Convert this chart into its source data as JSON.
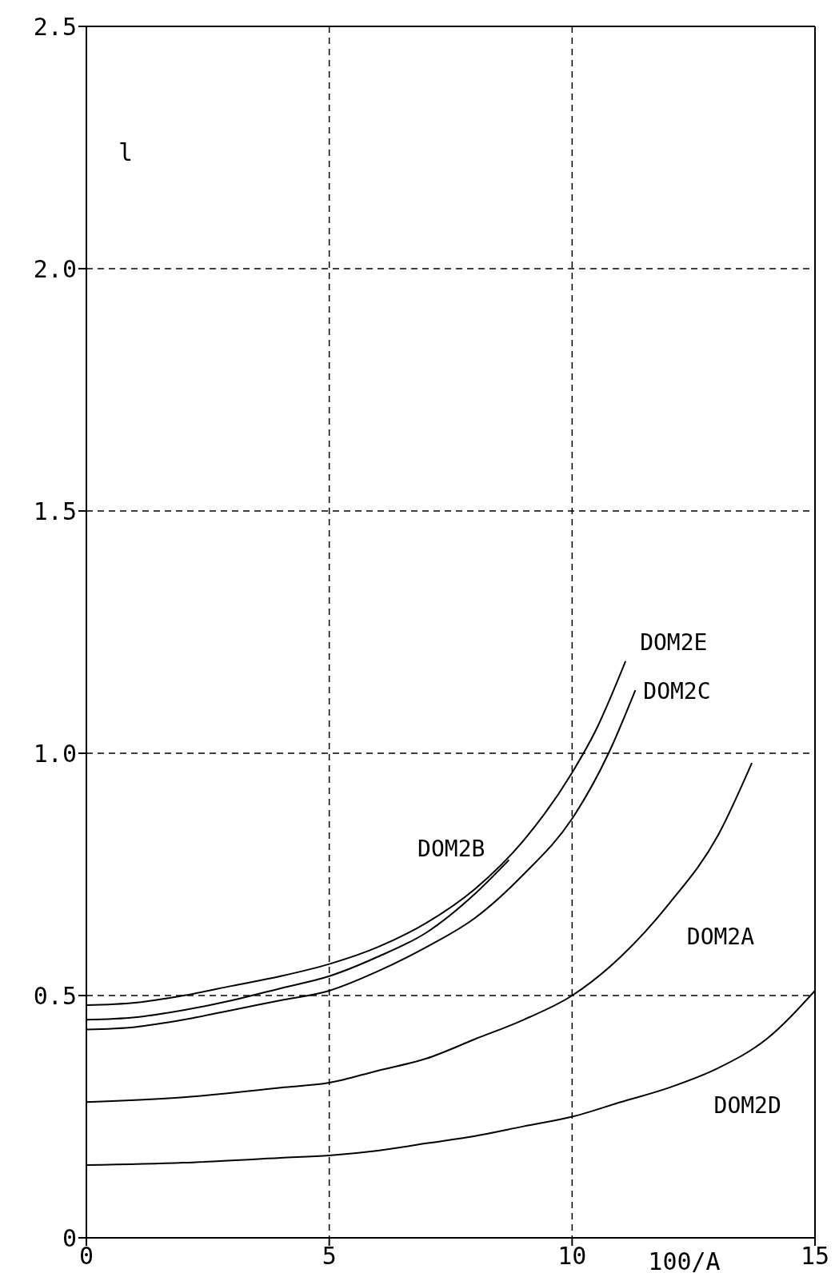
{
  "chart_data": {
    "type": "line",
    "xlabel": "100/A",
    "ylabel": "l",
    "xlim": [
      0,
      15
    ],
    "xticks": [
      0,
      5,
      10,
      15
    ],
    "ylim": [
      0,
      2.5
    ],
    "yticks": [
      0,
      {
        "value": 0.5,
        "label": "0.5"
      },
      {
        "value": 1,
        "label": "1.0"
      },
      {
        "value": 1.5,
        "label": "1.5"
      },
      {
        "value": 2,
        "label": "2.0"
      },
      {
        "value": 2.5,
        "label": "2.5"
      }
    ],
    "grid": true,
    "marker": "none",
    "line_style": "solid",
    "series": [
      {
        "name": "DOM2E",
        "color": "#000000",
        "x": [
          0,
          1,
          2,
          3,
          4,
          5,
          6,
          7,
          8,
          9,
          10,
          10.5,
          11.1
        ],
        "values": [
          0.48,
          0.485,
          0.5,
          0.52,
          0.54,
          0.565,
          0.6,
          0.65,
          0.72,
          0.82,
          0.96,
          1.05,
          1.19
        ]
      },
      {
        "name": "DOM2B",
        "color": "#000000",
        "x": [
          0,
          1,
          2,
          3,
          4,
          5,
          6,
          7,
          8,
          8.7
        ],
        "values": [
          0.45,
          0.455,
          0.47,
          0.49,
          0.515,
          0.54,
          0.58,
          0.63,
          0.71,
          0.78
        ]
      },
      {
        "name": "DOM2C",
        "color": "#000000",
        "x": [
          0,
          1,
          2,
          3,
          4,
          5,
          6,
          7,
          8,
          9,
          10,
          10.75,
          11.3
        ],
        "values": [
          0.43,
          0.435,
          0.45,
          0.47,
          0.49,
          0.51,
          0.55,
          0.6,
          0.66,
          0.75,
          0.865,
          1.0,
          1.13
        ]
      },
      {
        "name": "DOM2A",
        "color": "#000000",
        "x": [
          0,
          2,
          4,
          5,
          6,
          7,
          8,
          9,
          10,
          11,
          12,
          13,
          13.7
        ],
        "values": [
          0.28,
          0.29,
          0.31,
          0.32,
          0.345,
          0.37,
          0.41,
          0.45,
          0.5,
          0.58,
          0.69,
          0.83,
          0.98
        ]
      },
      {
        "name": "DOM2D",
        "color": "#000000",
        "x": [
          0,
          2,
          4,
          5,
          6,
          7,
          8,
          9,
          10,
          11,
          12,
          13,
          14,
          15
        ],
        "values": [
          0.15,
          0.155,
          0.165,
          0.17,
          0.18,
          0.195,
          0.21,
          0.23,
          0.25,
          0.28,
          0.31,
          0.35,
          0.41,
          0.51
        ]
      }
    ]
  }
}
